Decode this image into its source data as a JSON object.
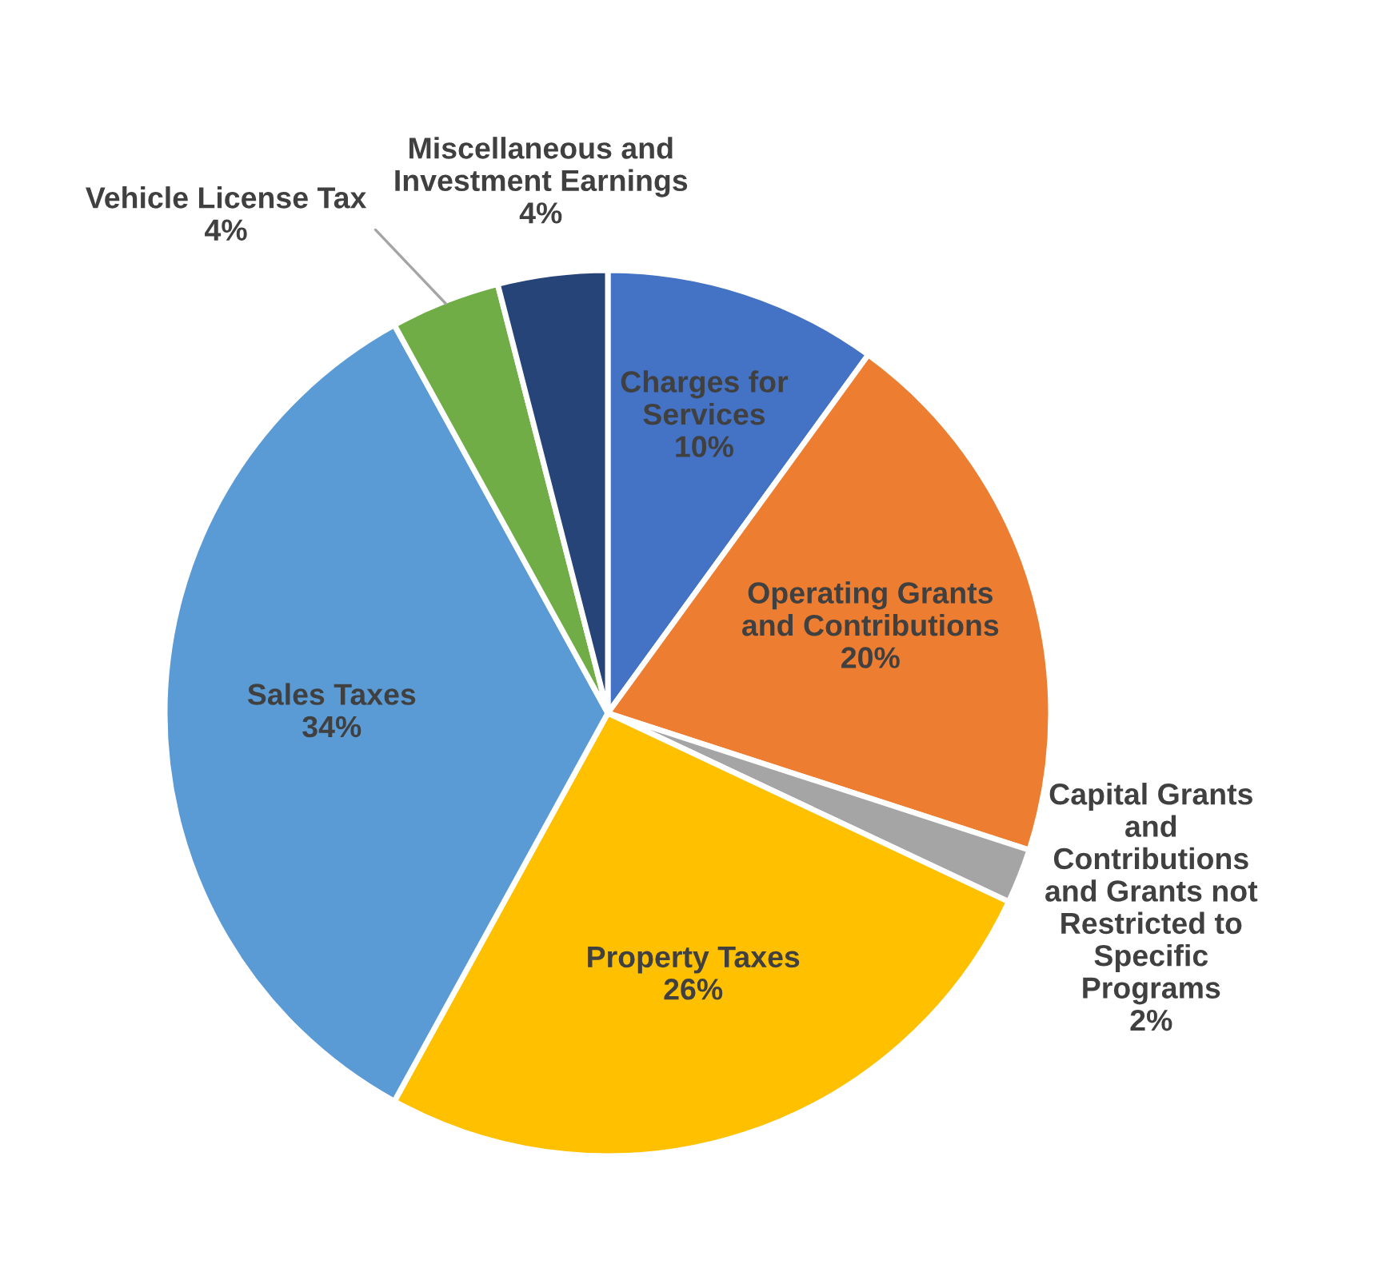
{
  "chart_data": {
    "type": "pie",
    "categories": [
      "Charges for\nServices",
      "Operating Grants\nand Contributions",
      "Capital Grants\nand\nContributions\nand Grants not\nRestricted to\nSpecific\nPrograms",
      "Property Taxes",
      "Sales Taxes",
      "Vehicle License Tax",
      "Miscellaneous and\nInvestment Earnings"
    ],
    "values": [
      10,
      20,
      2,
      26,
      34,
      4,
      4
    ],
    "value_labels": [
      "10%",
      "20%",
      "2%",
      "26%",
      "34%",
      "4%",
      "4%"
    ],
    "colors": [
      "#4472c4",
      "#ed7d31",
      "#a5a5a5",
      "#ffc000",
      "#5b9bd5",
      "#70ad47",
      "#264478"
    ],
    "legend": false
  }
}
